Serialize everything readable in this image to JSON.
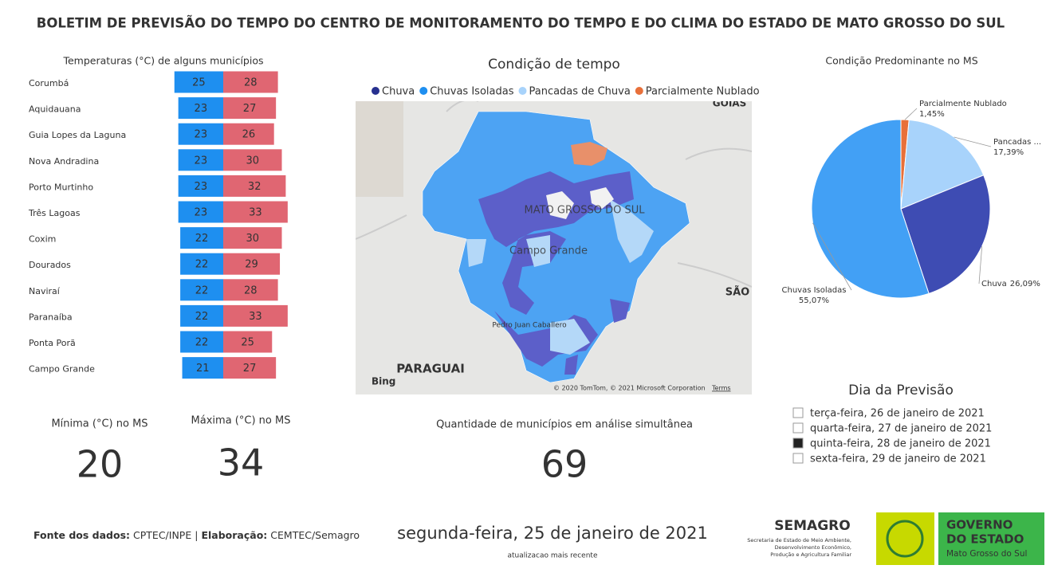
{
  "header": {
    "title": "BOLETIM DE PREVISÃO DO TEMPO DO CENTRO DE MONITORAMENTO DO TEMPO E DO CLIMA DO ESTADO DE MATO GROSSO DO SUL"
  },
  "chart_data": [
    {
      "type": "diverging-bar",
      "title": "Temperaturas (°C) de alguns municípios",
      "categories": [
        "Corumbá",
        "Aquidauana",
        "Guia Lopes da Laguna",
        "Nova Andradina",
        "Porto Murtinho",
        "Três Lagoas",
        "Coxim",
        "Dourados",
        "Naviraí",
        "Paranaíba",
        "Ponta Porã",
        "Campo Grande"
      ],
      "series": [
        {
          "color": "#1e8ff0",
          "values": [
            25,
            23,
            23,
            23,
            23,
            23,
            22,
            22,
            22,
            22,
            22,
            21
          ]
        },
        {
          "color": "#e06672",
          "values": [
            28,
            27,
            26,
            30,
            32,
            33,
            30,
            29,
            28,
            33,
            25,
            27
          ]
        }
      ]
    },
    {
      "type": "pie",
      "title": "Condição Predominante no MS",
      "categories": [
        "Parcialmente Nublado",
        "Pancadas ...",
        "Chuva",
        "Chuvas Isoladas"
      ],
      "values": [
        1.45,
        17.39,
        26.09,
        55.07
      ],
      "value_labels": [
        "1,45%",
        "17,39%",
        "26,09%",
        "55,07%"
      ],
      "colors": [
        "#e8703a",
        "#a8d3fb",
        "#3e4cb3",
        "#42a0f5"
      ]
    }
  ],
  "map": {
    "title": "Condição de tempo",
    "legend": [
      {
        "name": "Chuva",
        "color": "#27308f"
      },
      {
        "name": "Chuvas Isoladas",
        "color": "#1e8ff0"
      },
      {
        "name": "Pancadas de Chuva",
        "color": "#a8d3fb"
      },
      {
        "name": "Parcialmente Nublado",
        "color": "#e8703a"
      }
    ],
    "labels": [
      "MATO GROSSO DO SUL",
      "Campo Grande",
      "PARAGUAI",
      "GOIÁS",
      "SÃO",
      "Pedro Juan Caballero"
    ],
    "brand": "Bing",
    "copyright": "© 2020 TomTom, © 2021 Microsoft Corporation",
    "terms": "Terms"
  },
  "cards": [
    {
      "label": "Mínima (°C) no MS",
      "value": 20
    },
    {
      "label": "Máxima (°C) no MS",
      "value": 34
    },
    {
      "label": "Quantidade de municípios em análise simultânea",
      "value": 69
    }
  ],
  "slicer": {
    "title": "Dia da Previsão",
    "items": [
      {
        "label": "terça-feira, 26 de janeiro de 2021",
        "selected": false
      },
      {
        "label": "quarta-feira, 27 de janeiro de 2021",
        "selected": false
      },
      {
        "label": "quinta-feira, 28 de janeiro de 2021",
        "selected": true
      },
      {
        "label": "sexta-feira, 29 de janeiro de 2021",
        "selected": false
      }
    ]
  },
  "footer": {
    "source_label": "Fonte dos dados:",
    "source": "CPTEC/INPE",
    "separator": "|",
    "credit_label": "Elaboração:",
    "credit": "CEMTEC/Semagro",
    "date": "segunda-feira, 25 de janeiro de 2021",
    "date_note": "atualizacao mais recente"
  },
  "logos": {
    "semagro": "SEMAGRO",
    "semagro_lines": [
      "Secretaria de Estado de Meio Ambiente,",
      "Desenvolvimento Econômico,",
      "Produção e Agricultura Familiar"
    ],
    "governo_lines": [
      "GOVERNO",
      "DO ESTADO"
    ],
    "governo_sub": "Mato Grosso do Sul"
  }
}
